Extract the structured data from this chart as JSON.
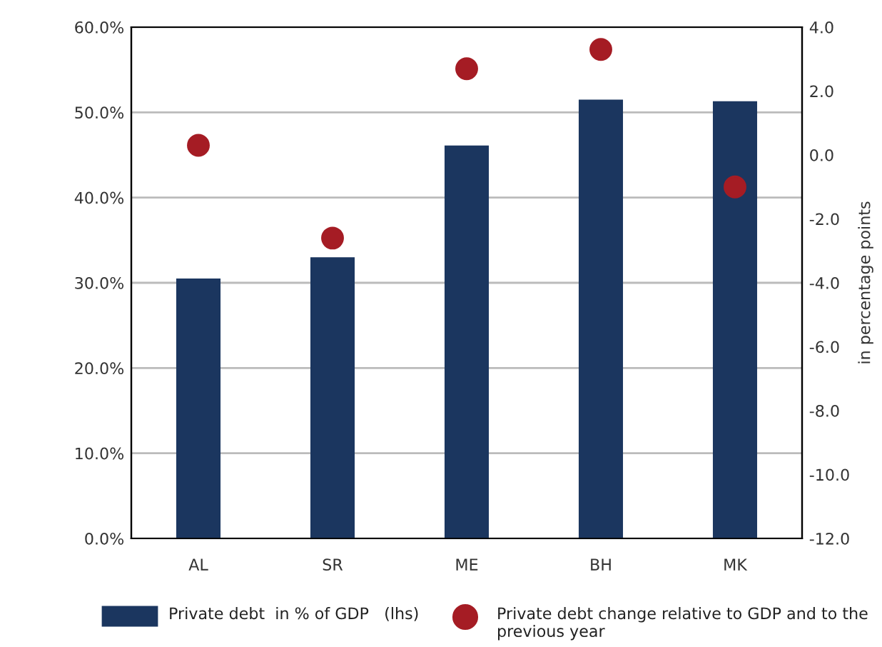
{
  "chart_data": {
    "type": "bar",
    "categories": [
      "AL",
      "SR",
      "ME",
      "BH",
      "MK"
    ],
    "series": [
      {
        "name": "Private debt  in % of GDP   (lhs)",
        "color": "#1b365f",
        "values": [
          30.5,
          33.0,
          46.1,
          51.5,
          51.3
        ]
      },
      {
        "name": "Private debt change relative to GDP and to the previous year",
        "type": "scatter",
        "axis": "y2",
        "color": "#a51c24",
        "values": [
          0.3,
          -2.6,
          2.7,
          3.3,
          -1.0
        ]
      }
    ],
    "ylim": [
      0,
      60
    ],
    "yticks": [
      {
        "value": 0,
        "label": "0.0%"
      },
      {
        "value": 10,
        "label": "10.0%"
      },
      {
        "value": 20,
        "label": "20.0%"
      },
      {
        "value": 30,
        "label": "30.0%"
      },
      {
        "value": 40,
        "label": "40.0%"
      },
      {
        "value": 50,
        "label": "50.0%"
      },
      {
        "value": 60,
        "label": "60.0%"
      }
    ],
    "y2lim": [
      -12,
      4
    ],
    "y2ticks": [
      {
        "value": -12,
        "label": "-12.0"
      },
      {
        "value": -10,
        "label": "-10.0"
      },
      {
        "value": -8,
        "label": "-8.0"
      },
      {
        "value": -6,
        "label": "-6.0"
      },
      {
        "value": -4,
        "label": "-4.0"
      },
      {
        "value": -2,
        "label": "-2.0"
      },
      {
        "value": 0,
        "label": "0.0"
      },
      {
        "value": 2,
        "label": "2.0"
      },
      {
        "value": 4,
        "label": "4.0"
      }
    ],
    "y2label": "in percentage points",
    "grid": "y",
    "legend": "bottom",
    "marker": "circle"
  }
}
